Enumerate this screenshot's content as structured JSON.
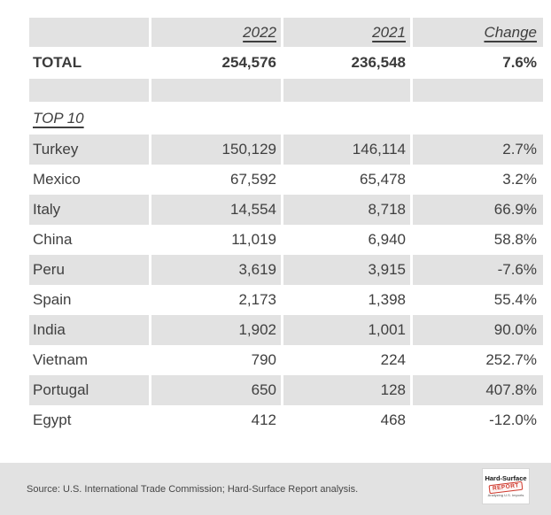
{
  "table": {
    "columns": {
      "year_a": "2022",
      "year_b": "2021",
      "change": "Change"
    },
    "total": {
      "label": "TOTAL",
      "y2022": "254,576",
      "y2021": "236,548",
      "change": "7.6%"
    },
    "section_label": "TOP 10",
    "rows": [
      {
        "country": "Turkey",
        "y2022": "150,129",
        "y2021": "146,114",
        "change": "2.7%"
      },
      {
        "country": "Mexico",
        "y2022": "67,592",
        "y2021": "65,478",
        "change": "3.2%"
      },
      {
        "country": "Italy",
        "y2022": "14,554",
        "y2021": "8,718",
        "change": "66.9%"
      },
      {
        "country": "China",
        "y2022": "11,019",
        "y2021": "6,940",
        "change": "58.8%"
      },
      {
        "country": "Peru",
        "y2022": "3,619",
        "y2021": "3,915",
        "change": "-7.6%"
      },
      {
        "country": "Spain",
        "y2022": "2,173",
        "y2021": "1,398",
        "change": "55.4%"
      },
      {
        "country": "India",
        "y2022": "1,902",
        "y2021": "1,001",
        "change": "90.0%"
      },
      {
        "country": "Vietnam",
        "y2022": "790",
        "y2021": "224",
        "change": "252.7%"
      },
      {
        "country": "Portugal",
        "y2022": "650",
        "y2021": "128",
        "change": "407.8%"
      },
      {
        "country": "Egypt",
        "y2022": "412",
        "y2021": "468",
        "change": "-12.0%"
      }
    ]
  },
  "footer": {
    "source": "Source: U.S. International Trade Commission; Hard-Surface Report analysis.",
    "logo": {
      "name": "Hard-Surface",
      "stamp": "REPORT",
      "tagline": "Analyzing U.S. Imports"
    }
  },
  "colors": {
    "row_gray": "#e2e2e2",
    "text_dark": "#3f3f3f",
    "logo_red": "#cf3a2e"
  },
  "chart_data": {
    "type": "table",
    "title": "",
    "columns": [
      "",
      "2022",
      "2021",
      "Change"
    ],
    "rows": [
      [
        "TOTAL",
        254576,
        236548,
        "7.6%"
      ],
      [
        "Turkey",
        150129,
        146114,
        "2.7%"
      ],
      [
        "Mexico",
        67592,
        65478,
        "3.2%"
      ],
      [
        "Italy",
        14554,
        8718,
        "66.9%"
      ],
      [
        "China",
        11019,
        6940,
        "58.8%"
      ],
      [
        "Peru",
        3619,
        3915,
        "-7.6%"
      ],
      [
        "Spain",
        2173,
        1398,
        "55.4%"
      ],
      [
        "India",
        1902,
        1001,
        "90.0%"
      ],
      [
        "Vietnam",
        790,
        224,
        "252.7%"
      ],
      [
        "Portugal",
        650,
        128,
        "407.8%"
      ],
      [
        "Egypt",
        412,
        468,
        "-12.0%"
      ]
    ],
    "notes": "Top-10 section header row labeled TOP 10; alternating gray/white row shading; source note in footer strip."
  }
}
